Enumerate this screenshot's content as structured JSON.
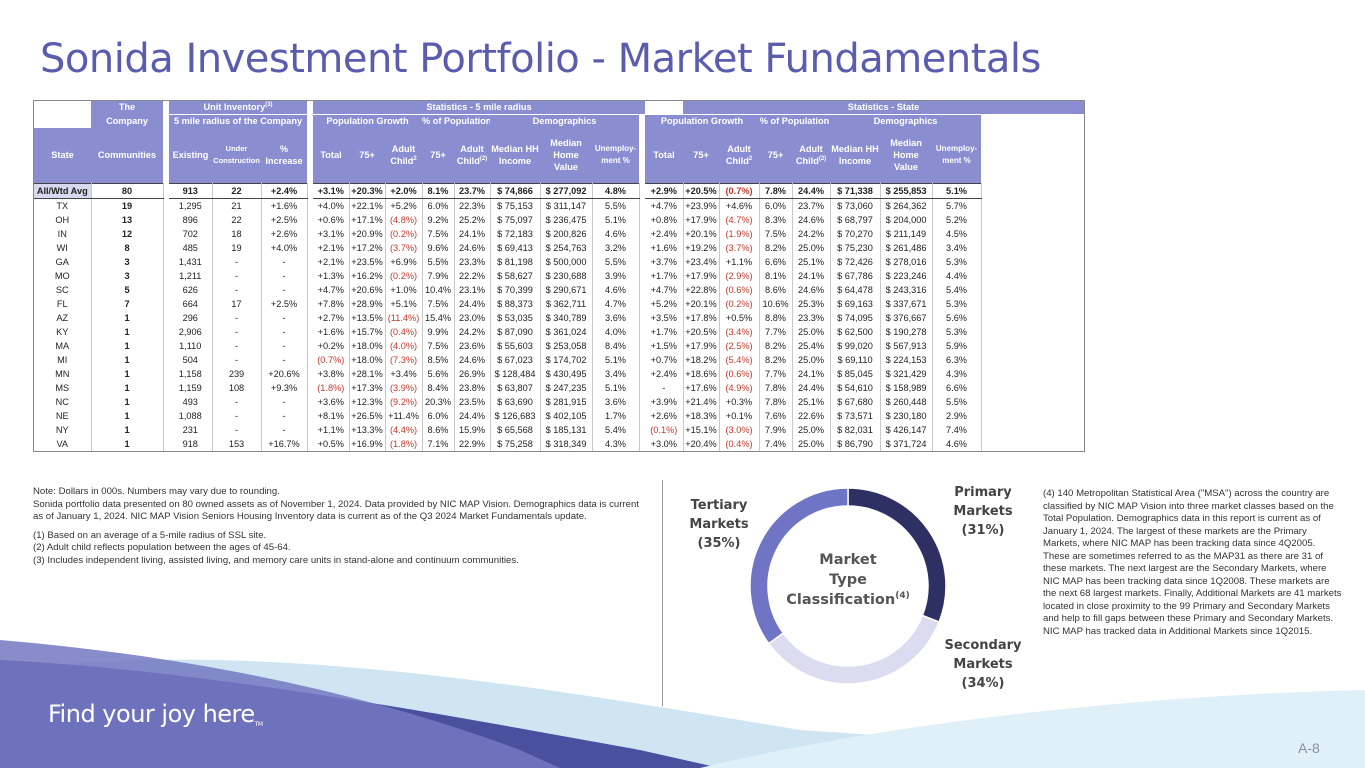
{
  "title": "Sonida Investment Portfolio - Market Fundamentals",
  "table": {
    "h1": {
      "company_line1": "The",
      "unit_inventory": "Unit Inventory",
      "unit_inventory_sup": "(3)",
      "stats_5mile": "Statistics - 5 mile radius",
      "stats_state": "Statistics - State"
    },
    "h2": {
      "company_line2": "Company",
      "five_mile_of_company": "5 mile radius of the Company",
      "pop_growth": "Population Growth",
      "pct_pop": "% of Population",
      "demographics": "Demographics",
      "pop_growth_s": "Population Growth",
      "pct_pop_s": "% of Population",
      "demographics_s": "Demographics"
    },
    "h3": {
      "state": "State",
      "communities": "Communities",
      "existing": "Existing",
      "under_construction": "Under Construction",
      "pct_increase": "% Increase",
      "total": "Total",
      "age75": "75+",
      "adult_child": "Adult Child",
      "adult_child_sup": "2",
      "pct75": "75+",
      "pct_adult_child": "Adult Child",
      "pct_adult_child_sup": "(2)",
      "median_hh_income": "Median HH Income",
      "median_home_value": "Median Home Value",
      "unemployment": "Unemploy-ment %",
      "total_s": "Total",
      "age75_s": "75+",
      "adult_child_s": "Adult Child",
      "adult_child_s_sup": "2",
      "pct75_s": "75+",
      "pct_adult_child_s": "Adult Child",
      "pct_adult_child_s_sup": "(2)",
      "median_hh_income_s": "Median HH Income",
      "median_home_value_s": "Median Home Value",
      "unemployment_s": "Unemploy-ment %"
    },
    "rows": [
      [
        "All/Wtd Avg",
        "80",
        "913",
        "22",
        "+2.4%",
        "+3.1%",
        "+20.3%",
        "+2.0%",
        "8.1%",
        "23.7%",
        "$ 74,866",
        "$ 277,092",
        "4.8%",
        "+2.9%",
        "+20.5%",
        "(0.7%)",
        "7.8%",
        "24.4%",
        "$ 71,338",
        "$ 255,853",
        "5.1%"
      ],
      [
        "TX",
        "19",
        "1,295",
        "21",
        "+1.6%",
        "+4.0%",
        "+22.1%",
        "+5.2%",
        "6.0%",
        "22.3%",
        "$ 75,153",
        "$ 311,147",
        "5.5%",
        "+4.7%",
        "+23.9%",
        "+4.6%",
        "6.0%",
        "23.7%",
        "$ 73,060",
        "$ 264,362",
        "5.7%"
      ],
      [
        "OH",
        "13",
        "896",
        "22",
        "+2.5%",
        "+0.6%",
        "+17.1%",
        "(4.8%)",
        "9.2%",
        "25.2%",
        "$ 75,097",
        "$ 236,475",
        "5.1%",
        "+0.8%",
        "+17.9%",
        "(4.7%)",
        "8.3%",
        "24.6%",
        "$ 68,797",
        "$ 204,000",
        "5.2%"
      ],
      [
        "IN",
        "12",
        "702",
        "18",
        "+2.6%",
        "+3.1%",
        "+20.9%",
        "(0.2%)",
        "7.5%",
        "24.1%",
        "$ 72,183",
        "$ 200,826",
        "4.6%",
        "+2.4%",
        "+20.1%",
        "(1.9%)",
        "7.5%",
        "24.2%",
        "$ 70,270",
        "$ 211,149",
        "4.5%"
      ],
      [
        "WI",
        "8",
        "485",
        "19",
        "+4.0%",
        "+2.1%",
        "+17.2%",
        "(3.7%)",
        "9.6%",
        "24.6%",
        "$ 69,413",
        "$ 254,763",
        "3.2%",
        "+1.6%",
        "+19.2%",
        "(3.7%)",
        "8.2%",
        "25.0%",
        "$ 75,230",
        "$ 261,486",
        "3.4%"
      ],
      [
        "GA",
        "3",
        "1,431",
        "-",
        "-",
        "+2.1%",
        "+23.5%",
        "+6.9%",
        "5.5%",
        "23.3%",
        "$ 81,198",
        "$ 500,000",
        "5.5%",
        "+3.7%",
        "+23.4%",
        "+1.1%",
        "6.6%",
        "25.1%",
        "$ 72,426",
        "$ 278,016",
        "5.3%"
      ],
      [
        "MO",
        "3",
        "1,211",
        "-",
        "-",
        "+1.3%",
        "+16.2%",
        "(0.2%)",
        "7.9%",
        "22.2%",
        "$ 58,627",
        "$ 230,688",
        "3.9%",
        "+1.7%",
        "+17.9%",
        "(2.9%)",
        "8.1%",
        "24.1%",
        "$ 67,786",
        "$ 223,246",
        "4.4%"
      ],
      [
        "SC",
        "5",
        "626",
        "-",
        "-",
        "+4.7%",
        "+20.6%",
        "+1.0%",
        "10.4%",
        "23.1%",
        "$ 70,399",
        "$ 290,671",
        "4.6%",
        "+4.7%",
        "+22.8%",
        "(0.6%)",
        "8.6%",
        "24.6%",
        "$ 64,478",
        "$ 243,316",
        "5.4%"
      ],
      [
        "FL",
        "7",
        "664",
        "17",
        "+2.5%",
        "+7.8%",
        "+28.9%",
        "+5.1%",
        "7.5%",
        "24.4%",
        "$ 88,373",
        "$ 362,711",
        "4.7%",
        "+5.2%",
        "+20.1%",
        "(0.2%)",
        "10.6%",
        "25.3%",
        "$ 69,163",
        "$ 337,671",
        "5.3%"
      ],
      [
        "AZ",
        "1",
        "296",
        "-",
        "-",
        "+2.7%",
        "+13.5%",
        "(11.4%)",
        "15.4%",
        "23.0%",
        "$ 53,035",
        "$ 340,789",
        "3.6%",
        "+3.5%",
        "+17.8%",
        "+0.5%",
        "8.8%",
        "23.3%",
        "$ 74,095",
        "$ 376,667",
        "5.6%"
      ],
      [
        "KY",
        "1",
        "2,906",
        "-",
        "-",
        "+1.6%",
        "+15.7%",
        "(0.4%)",
        "9.9%",
        "24.2%",
        "$ 87,090",
        "$ 361,024",
        "4.0%",
        "+1.7%",
        "+20.5%",
        "(3.4%)",
        "7.7%",
        "25.0%",
        "$ 62,500",
        "$ 190,278",
        "5.3%"
      ],
      [
        "MA",
        "1",
        "1,110",
        "-",
        "-",
        "+0.2%",
        "+18.0%",
        "(4.0%)",
        "7.5%",
        "23.6%",
        "$ 55,603",
        "$ 253,058",
        "8.4%",
        "+1.5%",
        "+17.9%",
        "(2.5%)",
        "8.2%",
        "25.4%",
        "$ 99,020",
        "$ 567,913",
        "5.9%"
      ],
      [
        "MI",
        "1",
        "504",
        "-",
        "-",
        "(0.7%)",
        "+18.0%",
        "(7.3%)",
        "8.5%",
        "24.6%",
        "$ 67,023",
        "$ 174,702",
        "5.1%",
        "+0.7%",
        "+18.2%",
        "(5.4%)",
        "8.2%",
        "25.0%",
        "$ 69,110",
        "$ 224,153",
        "6.3%"
      ],
      [
        "MN",
        "1",
        "1,158",
        "239",
        "+20.6%",
        "+3.8%",
        "+28.1%",
        "+3.4%",
        "5.6%",
        "26.9%",
        "$ 128,484",
        "$ 430,495",
        "3.4%",
        "+2.4%",
        "+18.6%",
        "(0.6%)",
        "7.7%",
        "24.1%",
        "$ 85,045",
        "$ 321,429",
        "4.3%"
      ],
      [
        "MS",
        "1",
        "1,159",
        "108",
        "+9.3%",
        "(1.8%)",
        "+17.3%",
        "(3.9%)",
        "8.4%",
        "23.8%",
        "$ 63,807",
        "$ 247,235",
        "5.1%",
        "-",
        "+17.6%",
        "(4.9%)",
        "7.8%",
        "24.4%",
        "$ 54,610",
        "$ 158,989",
        "6.6%"
      ],
      [
        "NC",
        "1",
        "493",
        "-",
        "-",
        "+3.6%",
        "+12.3%",
        "(9.2%)",
        "20.3%",
        "23.5%",
        "$ 63,690",
        "$ 281,915",
        "3.6%",
        "+3.9%",
        "+21.4%",
        "+0.3%",
        "7.8%",
        "25.1%",
        "$ 67,680",
        "$ 260,448",
        "5.5%"
      ],
      [
        "NE",
        "1",
        "1,088",
        "-",
        "-",
        "+8.1%",
        "+26.5%",
        "+11.4%",
        "6.0%",
        "24.4%",
        "$ 126,683",
        "$ 402,105",
        "1.7%",
        "+2.6%",
        "+18.3%",
        "+0.1%",
        "7.6%",
        "22.6%",
        "$ 73,571",
        "$ 230,180",
        "2.9%"
      ],
      [
        "NY",
        "1",
        "231",
        "-",
        "-",
        "+1.1%",
        "+13.3%",
        "(4.4%)",
        "8.6%",
        "15.9%",
        "$ 65,568",
        "$ 185,131",
        "5.4%",
        "(0.1%)",
        "+15.1%",
        "(3.0%)",
        "7.9%",
        "25.0%",
        "$ 82,031",
        "$ 426,147",
        "7.4%"
      ],
      [
        "VA",
        "1",
        "918",
        "153",
        "+16.7%",
        "+0.5%",
        "+16.9%",
        "(1.8%)",
        "7.1%",
        "22.9%",
        "$ 75,258",
        "$ 318,349",
        "4.3%",
        "+3.0%",
        "+20.4%",
        "(0.4%)",
        "7.4%",
        "25.0%",
        "$ 86,790",
        "$ 371,724",
        "4.6%"
      ]
    ]
  },
  "notes": {
    "line1": "Note: Dollars in 000s. Numbers may vary due to rounding.",
    "line2": "Sonida portfolio data presented on 80 owned assets as of November 1, 2024. Data provided by NIC MAP Vision. Demographics data is current as of January 1, 2024.  NIC MAP Vision Seniors Housing Inventory data is current as of the Q3 2024 Market Fundamentals update.",
    "fn1": "(1) Based on an average of a 5-mile radius of SSL site.",
    "fn2": "(2) Adult child reflects population between the ages of 45-64.",
    "fn3": "(3) Includes independent living, assisted living, and memory care units in stand-alone and continuum communities."
  },
  "chart_data": {
    "type": "pie",
    "title": "Market Type Classification",
    "title_sup": "(4)",
    "title_lines": [
      "Market",
      "Type",
      "Classification"
    ],
    "categories": [
      "Primary Markets",
      "Secondary Markets",
      "Tertiary Markets"
    ],
    "values": [
      31,
      34,
      35
    ],
    "labels": [
      {
        "name": "Primary Markets",
        "line1": "Primary",
        "line2": "Markets",
        "pct": "(31%)",
        "color": "#2e2f63"
      },
      {
        "name": "Secondary Markets",
        "line1": "Secondary",
        "line2": "Markets",
        "pct": "(34%)",
        "color": "#dcdcf0"
      },
      {
        "name": "Tertiary Markets",
        "line1": "Tertiary",
        "line2": "Markets",
        "pct": "(35%)",
        "color": "#7074c4"
      }
    ]
  },
  "side_note": "(4) 140 Metropolitan Statistical Area (\"MSA\") across the country are classified by NIC MAP Vision into three market classes based on the Total Population. Demographics data in this report is current as of January 1, 2024. The largest of these markets are the Primary Markets, where NIC MAP has been tracking data since 4Q2005.  These are sometimes referred to as the MAP31 as there are 31 of these markets.  The next largest are the Secondary Markets, where NIC MAP has been tracking data since 1Q2008.  These markets are the next 68 largest markets.  Finally, Additional Markets are 41 markets located in close proximity to the 99 Primary and Secondary Markets and help to fill gaps between these Primary and Secondary Markets.  NIC MAP has tracked data in Additional Markets since 1Q2015.",
  "footer": {
    "tagline": "Find your joy here",
    "tm": "TM",
    "page_number": "A-8"
  },
  "colors": {
    "title": "#5a5cad",
    "header_bg": "#8a8ed0",
    "negative": "#c0392b",
    "wave_dark": "#4a4f9e",
    "wave_light": "#cfe6f2"
  }
}
